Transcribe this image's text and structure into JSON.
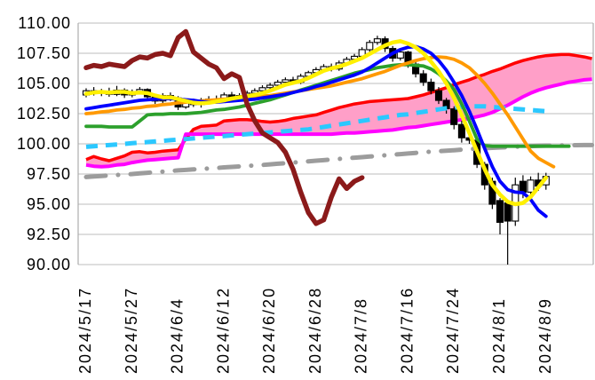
{
  "chart_data": {
    "type": "candlestick",
    "title": "",
    "xlabel": "",
    "ylabel": "",
    "grid": "horizontal",
    "legend": "none",
    "background": "#FFFFFF",
    "colors": {
      "grid": "#C9C9C9",
      "border": "#ADADAD",
      "up_candle": "#FFFFFF",
      "down_candle": "#000000",
      "candle_outline": "#000000",
      "cloud_fill": "#FF9FC8",
      "cloud_upper": "#FF0000",
      "cloud_lower": "#FF00FF",
      "lagging_line": "#8B1A1A",
      "yellow_line": "#FFF000",
      "blue_line": "#0000FF",
      "green_line": "#2CA02C",
      "orange_line": "#FF9900",
      "cyan_dashed": "#2BC8FF",
      "gray_dashdot": "#9C9C9C"
    },
    "y_axis": {
      "min": 90,
      "max": 110,
      "ticks": [
        {
          "value": 110.0,
          "label": "110.00"
        },
        {
          "value": 107.5,
          "label": "107.50"
        },
        {
          "value": 105.0,
          "label": "105.00"
        },
        {
          "value": 102.5,
          "label": "102.50"
        },
        {
          "value": 100.0,
          "label": "100.00"
        },
        {
          "value": 97.5,
          "label": "97.50"
        },
        {
          "value": 95.0,
          "label": "95.00"
        },
        {
          "value": 92.5,
          "label": "92.50"
        },
        {
          "value": 90.0,
          "label": "90.00"
        }
      ]
    },
    "x_axis": {
      "tick_labels": [
        "2024/5/17",
        "2024/5/27",
        "2024/6/4",
        "2024/6/12",
        "2024/6/20",
        "2024/6/28",
        "2024/7/8",
        "2024/7/16",
        "2024/7/24",
        "2024/8/1",
        "2024/8/9"
      ],
      "tick_indices": [
        0,
        6,
        12,
        18,
        24,
        30,
        36,
        42,
        48,
        54,
        60
      ]
    },
    "candles": [
      [
        104.05,
        104.6,
        103.85,
        104.4
      ],
      [
        104.4,
        104.7,
        104.0,
        104.2
      ],
      [
        104.2,
        104.55,
        103.95,
        104.35
      ],
      [
        104.35,
        104.65,
        103.9,
        104.1
      ],
      [
        104.1,
        104.8,
        103.95,
        104.45
      ],
      [
        104.45,
        104.6,
        103.8,
        104.05
      ],
      [
        104.05,
        104.5,
        103.85,
        104.3
      ],
      [
        104.3,
        104.7,
        104.1,
        104.5
      ],
      [
        104.5,
        104.6,
        103.6,
        103.9
      ],
      [
        103.9,
        104.1,
        103.3,
        103.55
      ],
      [
        103.55,
        104.2,
        103.35,
        104.0
      ],
      [
        104.0,
        104.25,
        103.55,
        103.8
      ],
      [
        103.8,
        103.95,
        102.8,
        103.05
      ],
      [
        103.05,
        103.7,
        102.9,
        103.5
      ],
      [
        103.5,
        103.75,
        103.05,
        103.25
      ],
      [
        103.25,
        103.8,
        103.0,
        103.55
      ],
      [
        103.55,
        103.95,
        103.3,
        103.7
      ],
      [
        103.7,
        104.0,
        103.35,
        103.55
      ],
      [
        103.55,
        104.25,
        103.4,
        104.05
      ],
      [
        104.05,
        104.3,
        103.6,
        103.8
      ],
      [
        103.8,
        104.2,
        103.55,
        104.0
      ],
      [
        104.0,
        104.4,
        103.75,
        104.2
      ],
      [
        104.2,
        104.6,
        104.0,
        104.4
      ],
      [
        104.4,
        104.85,
        104.2,
        104.65
      ],
      [
        104.65,
        105.05,
        104.45,
        104.85
      ],
      [
        104.85,
        105.3,
        104.65,
        105.1
      ],
      [
        105.1,
        105.5,
        104.9,
        105.3
      ],
      [
        105.3,
        105.55,
        104.9,
        105.1
      ],
      [
        105.1,
        105.8,
        104.95,
        105.6
      ],
      [
        105.6,
        106.05,
        105.4,
        105.9
      ],
      [
        105.9,
        106.35,
        105.7,
        106.15
      ],
      [
        106.15,
        106.6,
        105.95,
        106.4
      ],
      [
        106.4,
        106.65,
        106.0,
        106.2
      ],
      [
        106.2,
        106.9,
        106.05,
        106.7
      ],
      [
        106.7,
        107.2,
        106.5,
        107.0
      ],
      [
        107.0,
        107.45,
        106.8,
        107.25
      ],
      [
        107.25,
        108.0,
        107.1,
        107.8
      ],
      [
        107.8,
        108.6,
        107.6,
        108.4
      ],
      [
        108.4,
        108.95,
        108.2,
        108.7
      ],
      [
        108.7,
        108.9,
        107.6,
        107.9
      ],
      [
        107.9,
        108.1,
        106.8,
        107.1
      ],
      [
        107.1,
        107.8,
        106.9,
        107.6
      ],
      [
        107.6,
        107.7,
        106.3,
        106.6
      ],
      [
        106.6,
        106.9,
        105.5,
        105.8
      ],
      [
        105.8,
        106.1,
        104.8,
        105.1
      ],
      [
        105.1,
        105.4,
        104.1,
        104.4
      ],
      [
        104.4,
        104.7,
        103.3,
        103.6
      ],
      [
        103.6,
        103.8,
        102.5,
        102.9
      ],
      [
        102.9,
        103.1,
        101.2,
        101.6
      ],
      [
        101.6,
        101.9,
        100.1,
        100.5
      ],
      [
        100.5,
        101.1,
        100.0,
        100.3
      ],
      [
        100.3,
        100.5,
        98.0,
        98.3
      ],
      [
        98.3,
        98.5,
        96.2,
        96.6
      ],
      [
        96.9,
        97.2,
        94.6,
        95.0
      ],
      [
        95.3,
        95.5,
        92.5,
        93.5
      ],
      [
        95.1,
        95.2,
        90.0,
        93.6
      ],
      [
        93.6,
        97.2,
        93.2,
        96.6
      ],
      [
        96.9,
        97.4,
        95.5,
        96.0
      ],
      [
        96.0,
        97.3,
        95.7,
        97.0
      ],
      [
        97.0,
        97.6,
        96.1,
        96.5
      ],
      [
        96.6,
        97.6,
        96.2,
        97.3
      ]
    ],
    "cloud": {
      "upper": [
        98.7,
        98.95,
        98.75,
        98.6,
        98.8,
        99.0,
        99.3,
        99.35,
        99.25,
        99.3,
        99.4,
        99.45,
        99.5,
        100.4,
        101.2,
        101.45,
        101.5,
        101.55,
        101.9,
        101.95,
        102.0,
        102.0,
        101.95,
        101.85,
        101.8,
        101.85,
        101.95,
        102.1,
        102.2,
        102.3,
        102.4,
        102.6,
        102.8,
        103.0,
        103.15,
        103.3,
        103.4,
        103.5,
        103.55,
        103.6,
        103.65,
        103.7,
        103.75,
        103.9,
        104.05,
        104.25,
        104.45,
        104.65,
        104.9,
        105.1,
        105.3,
        105.55,
        105.75,
        106.0,
        106.2,
        106.45,
        106.7,
        106.9,
        107.05,
        107.2,
        107.3,
        107.35,
        107.4,
        107.4,
        107.3,
        107.2,
        107.05
      ],
      "lower": [
        98.25,
        98.15,
        98.1,
        98.15,
        98.25,
        98.3,
        98.45,
        98.55,
        98.65,
        98.7,
        98.75,
        98.8,
        98.85,
        100.8,
        100.8,
        100.8,
        100.8,
        100.8,
        100.8,
        100.8,
        100.8,
        100.8,
        100.8,
        100.8,
        100.8,
        100.8,
        100.8,
        100.8,
        100.8,
        100.8,
        100.8,
        100.8,
        100.8,
        100.85,
        100.9,
        100.9,
        100.95,
        101.0,
        101.05,
        101.1,
        101.15,
        101.25,
        101.35,
        101.4,
        101.5,
        101.6,
        101.7,
        101.8,
        101.9,
        102.0,
        102.1,
        102.25,
        102.4,
        102.6,
        102.9,
        103.2,
        103.55,
        103.9,
        104.2,
        104.45,
        104.65,
        104.8,
        104.95,
        105.1,
        105.2,
        105.3,
        105.35
      ]
    },
    "series": [
      {
        "name": "gray-dashdot-line",
        "color": "#9C9C9C",
        "width": 5,
        "dash": "22 14 0.1 14",
        "cap": "round",
        "values": [
          97.25,
          97.3,
          97.34,
          97.38,
          97.42,
          97.46,
          97.5,
          97.55,
          97.6,
          97.65,
          97.7,
          97.75,
          97.8,
          97.84,
          97.88,
          97.92,
          97.96,
          98.0,
          98.05,
          98.09,
          98.13,
          98.17,
          98.21,
          98.25,
          98.3,
          98.35,
          98.4,
          98.45,
          98.5,
          98.55,
          98.6,
          98.65,
          98.7,
          98.75,
          98.8,
          98.85,
          98.9,
          98.95,
          99.0,
          99.05,
          99.1,
          99.15,
          99.2,
          99.25,
          99.3,
          99.35,
          99.39,
          99.43,
          99.47,
          99.52,
          99.56,
          99.6,
          99.64,
          99.67,
          99.7,
          99.73,
          99.76,
          99.79,
          99.81,
          99.83,
          99.85,
          99.86,
          99.87,
          99.88,
          99.89,
          99.9,
          99.9
        ]
      },
      {
        "name": "cyan-dashed-line",
        "color": "#2BC8FF",
        "width": 5,
        "dash": "13 9",
        "cap": "butt",
        "values": [
          99.75,
          99.8,
          99.85,
          99.9,
          99.95,
          100.0,
          100.05,
          100.1,
          100.15,
          100.2,
          100.25,
          100.3,
          100.35,
          100.4,
          100.45,
          100.5,
          100.55,
          100.6,
          100.65,
          100.7,
          100.75,
          100.8,
          100.85,
          100.9,
          100.95,
          101.0,
          101.05,
          101.1,
          101.15,
          101.2,
          101.3,
          101.4,
          101.5,
          101.6,
          101.7,
          101.8,
          101.9,
          102.0,
          102.1,
          102.2,
          102.3,
          102.4,
          102.45,
          102.55,
          102.65,
          102.75,
          102.85,
          102.95,
          103.0,
          103.05,
          103.1,
          103.1,
          103.1,
          103.05,
          103.0,
          102.95,
          102.9,
          102.85,
          102.8,
          102.75,
          102.7
        ]
      },
      {
        "name": "green-line",
        "color": "#2CA02C",
        "width": 3.8,
        "dash": "",
        "cap": "round",
        "values": [
          101.45,
          101.45,
          101.45,
          101.4,
          101.4,
          101.4,
          101.4,
          101.9,
          102.4,
          102.45,
          102.45,
          102.5,
          102.5,
          102.5,
          102.55,
          102.6,
          102.7,
          102.8,
          102.85,
          102.95,
          103.05,
          103.2,
          103.35,
          103.5,
          103.65,
          103.85,
          104.05,
          104.25,
          104.45,
          104.65,
          104.85,
          105.05,
          105.25,
          105.45,
          105.65,
          105.85,
          106.0,
          106.15,
          106.3,
          106.4,
          106.5,
          106.55,
          106.55,
          106.5,
          106.45,
          106.2,
          105.8,
          105.2,
          104.5,
          103.3,
          101.9,
          100.4,
          99.85,
          99.8,
          99.8,
          99.8,
          99.8,
          99.8,
          99.8,
          99.8,
          99.8,
          99.8,
          99.8,
          99.8
        ]
      },
      {
        "name": "orange-line",
        "color": "#FF9900",
        "width": 3.8,
        "dash": "",
        "cap": "round",
        "values": [
          102.5,
          102.55,
          102.65,
          102.7,
          102.8,
          102.85,
          102.95,
          103.0,
          103.1,
          103.15,
          103.25,
          103.3,
          103.4,
          103.45,
          103.5,
          103.55,
          103.6,
          103.65,
          103.7,
          103.75,
          103.8,
          103.85,
          103.9,
          103.95,
          104.0,
          104.1,
          104.2,
          104.3,
          104.4,
          104.5,
          104.6,
          104.7,
          104.8,
          104.95,
          105.1,
          105.25,
          105.4,
          105.6,
          105.8,
          106.0,
          106.25,
          106.5,
          106.7,
          106.9,
          107.05,
          107.15,
          107.2,
          107.15,
          107.0,
          106.7,
          106.3,
          105.7,
          105.0,
          104.2,
          103.3,
          102.4,
          101.4,
          100.4,
          99.4,
          98.8,
          98.45,
          98.1
        ]
      },
      {
        "name": "blue-line",
        "color": "#0000FF",
        "width": 3.8,
        "dash": "",
        "cap": "round",
        "values": [
          102.9,
          103.0,
          103.1,
          103.2,
          103.3,
          103.4,
          103.5,
          103.6,
          103.65,
          103.7,
          103.75,
          103.75,
          103.7,
          103.65,
          103.6,
          103.5,
          103.45,
          103.45,
          103.5,
          103.55,
          103.6,
          103.65,
          103.7,
          103.8,
          103.9,
          104.0,
          104.1,
          104.25,
          104.4,
          104.55,
          104.75,
          104.9,
          105.1,
          105.3,
          105.5,
          105.7,
          105.95,
          106.3,
          106.7,
          107.1,
          107.5,
          107.8,
          108.0,
          108.05,
          107.85,
          107.5,
          106.9,
          106.1,
          105.1,
          104.0,
          102.7,
          101.2,
          99.6,
          98.1,
          96.9,
          96.2,
          96.0,
          95.95,
          95.4,
          94.5,
          94.0
        ]
      },
      {
        "name": "yellow-line",
        "color": "#FFF000",
        "width": 4.5,
        "dash": "",
        "cap": "round",
        "values": [
          104.15,
          104.25,
          104.3,
          104.25,
          104.3,
          104.3,
          104.2,
          104.25,
          104.2,
          104.0,
          103.85,
          103.85,
          103.7,
          103.55,
          103.4,
          103.35,
          103.4,
          103.5,
          103.6,
          103.75,
          103.85,
          103.95,
          104.05,
          104.2,
          104.4,
          104.65,
          104.9,
          105.05,
          105.2,
          105.45,
          105.75,
          106.05,
          106.25,
          106.4,
          106.6,
          106.85,
          107.1,
          107.45,
          107.8,
          108.15,
          108.4,
          108.5,
          108.3,
          108.0,
          107.5,
          106.8,
          106.0,
          105.0,
          103.8,
          102.4,
          100.9,
          99.4,
          97.9,
          96.6,
          95.8,
          95.2,
          95.0,
          95.1,
          95.6,
          96.4,
          97.2
        ]
      },
      {
        "name": "lagging-thick-darkred-line",
        "color": "#8B1A1A",
        "width": 5.5,
        "dash": "",
        "cap": "round",
        "values": [
          106.3,
          106.5,
          106.4,
          106.6,
          106.5,
          106.4,
          106.9,
          107.2,
          107.1,
          107.4,
          107.5,
          107.3,
          108.8,
          109.3,
          107.6,
          107.1,
          106.6,
          106.3,
          105.4,
          105.8,
          105.5,
          103.3,
          101.9,
          100.9,
          100.5,
          100.1,
          99.3,
          97.9,
          96.0,
          94.3,
          93.4,
          93.7,
          95.6,
          97.1,
          96.3,
          96.9,
          97.2
        ]
      }
    ]
  }
}
